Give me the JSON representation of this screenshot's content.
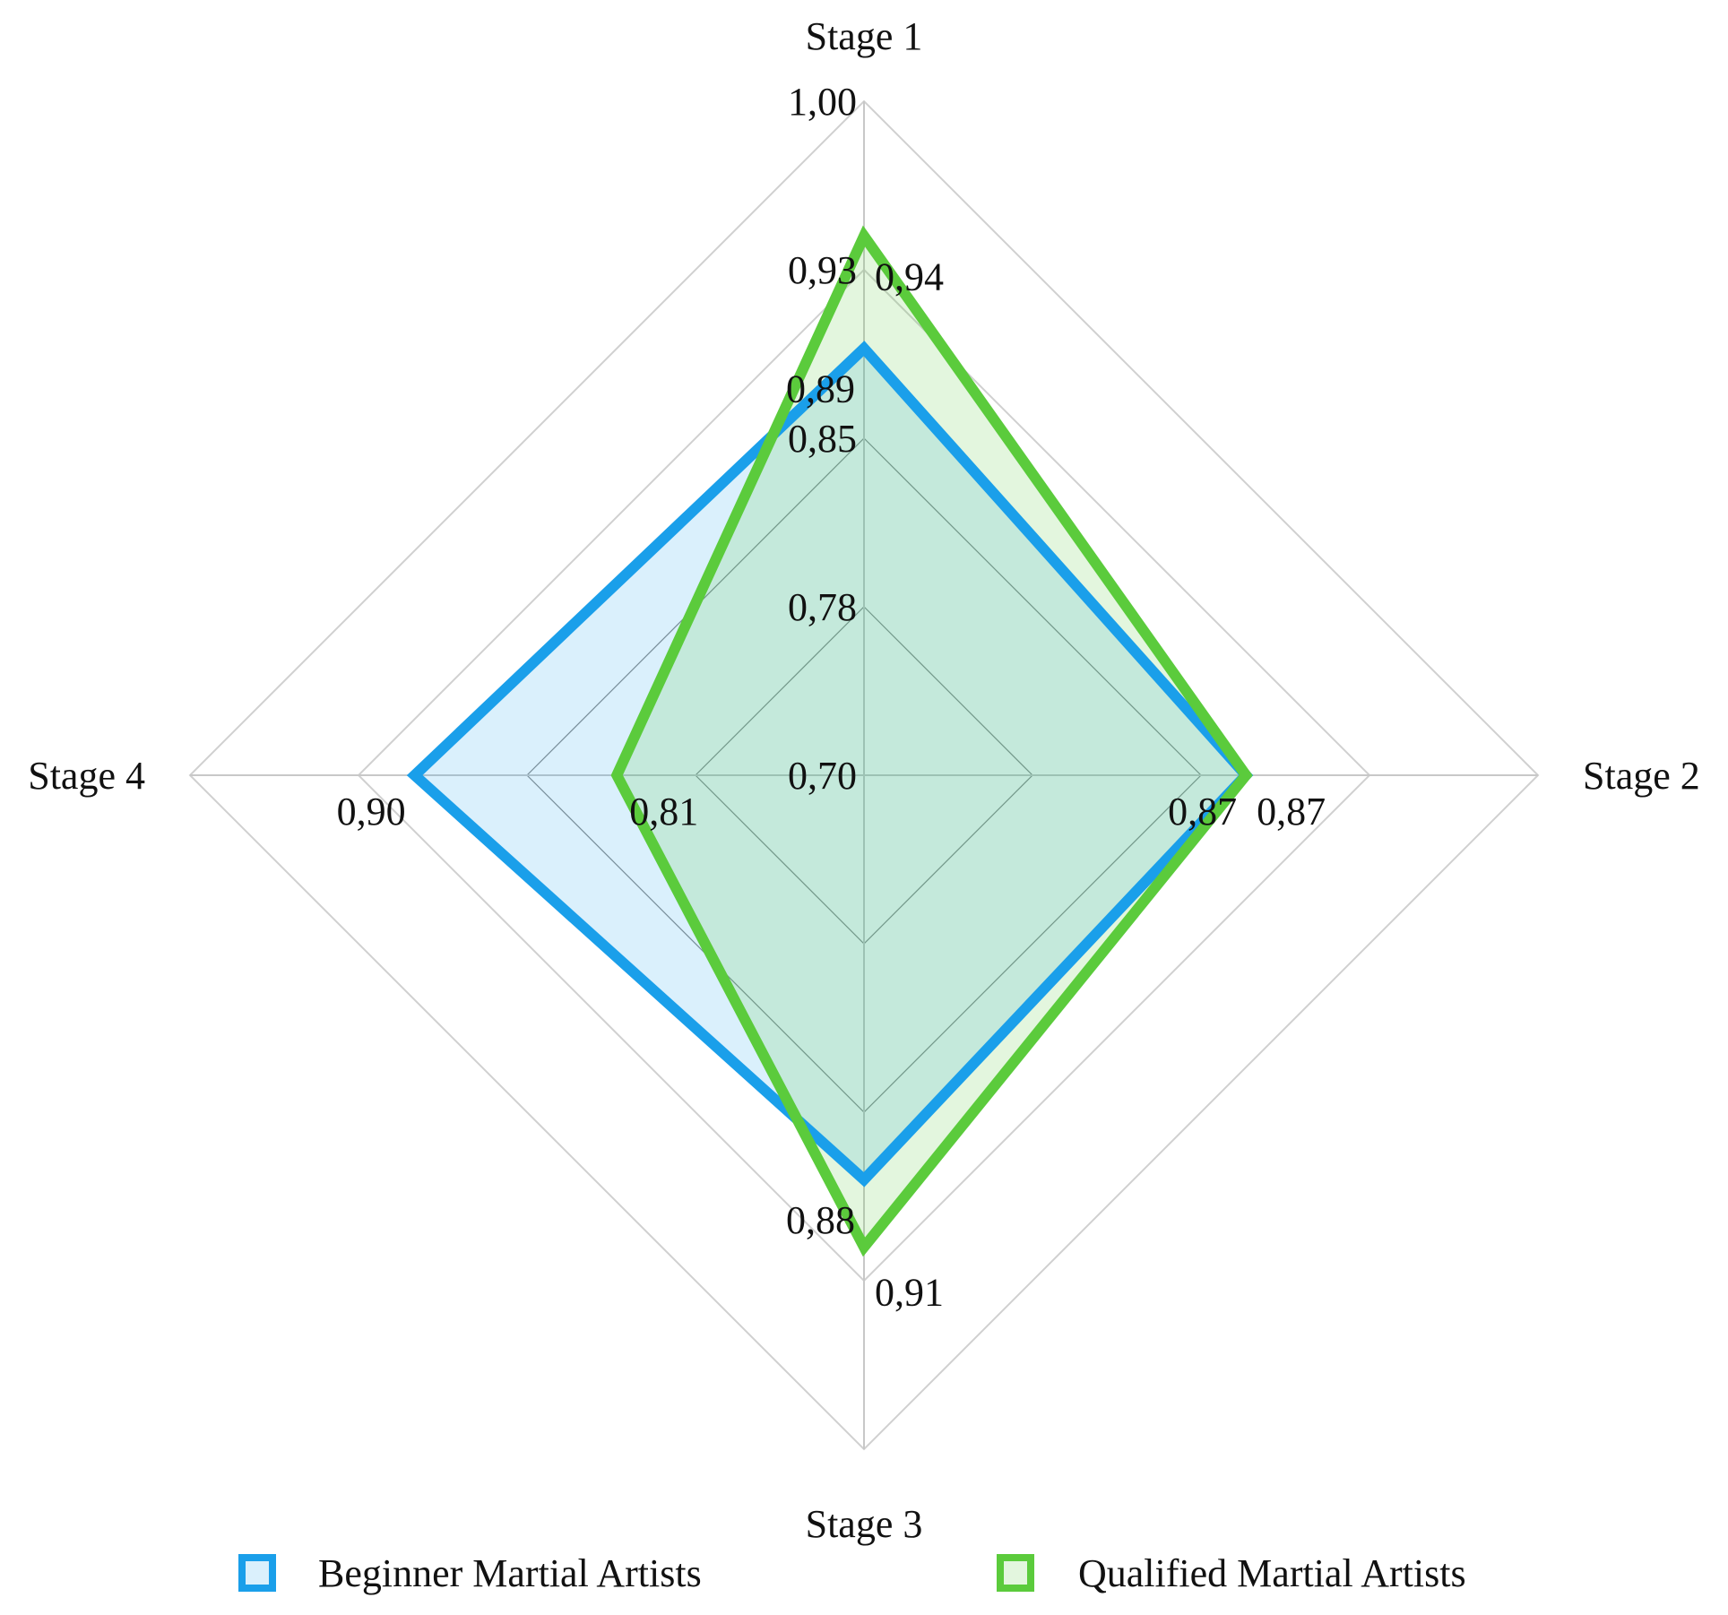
{
  "chart_data": {
    "type": "radar",
    "axes": [
      "Stage 1",
      "Stage 2",
      "Stage 3",
      "Stage 4"
    ],
    "radial_ticks": [
      "0,70",
      "0,78",
      "0,85",
      "0,93",
      "1,00"
    ],
    "radial_tick_values": [
      0.7,
      0.775,
      0.85,
      0.925,
      1.0
    ],
    "range": [
      0.7,
      1.0
    ],
    "series": [
      {
        "name": "Beginner Martial Artists",
        "values": [
          0.89,
          0.87,
          0.88,
          0.9
        ],
        "labels": [
          "0,89",
          "0,87",
          "0,88",
          "0,90"
        ],
        "stroke": "#1A9FEA",
        "fill": "#D7E9F8"
      },
      {
        "name": "Qualified Martial Artists",
        "values": [
          0.94,
          0.87,
          0.91,
          0.81
        ],
        "labels": [
          "0,94",
          "0,87",
          "0,91",
          "0,81"
        ],
        "stroke": "#5BCB3C",
        "fill": "#DDF2D4"
      }
    ],
    "legend_position": "bottom",
    "grid": true,
    "grid_color": "#D0D0D0"
  }
}
